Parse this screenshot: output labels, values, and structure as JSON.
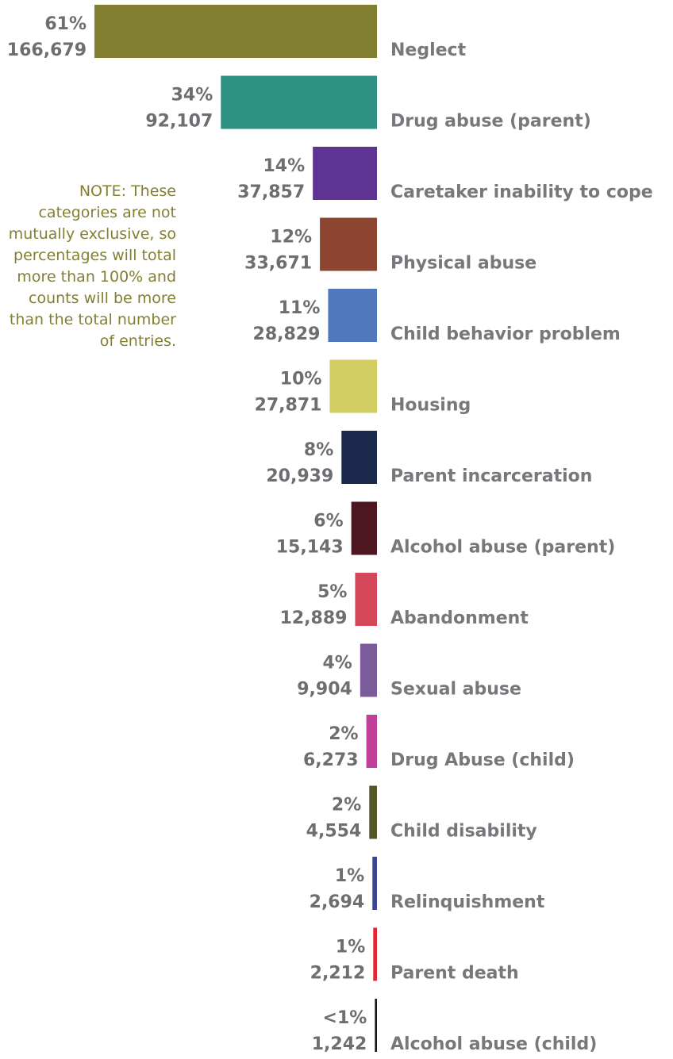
{
  "chart_data": {
    "type": "hbar",
    "categories": [
      "Neglect",
      "Drug abuse (parent)",
      "Caretaker inability to cope",
      "Physical abuse",
      "Child behavior problem",
      "Housing",
      "Parent incarceration",
      "Alcohol abuse (parent)",
      "Abandonment",
      "Sexual abuse",
      "Drug Abuse (child)",
      "Child disability",
      "Relinquishment",
      "Parent death",
      "Alcohol abuse (child)"
    ],
    "values": [
      166679,
      92107,
      37857,
      33671,
      28829,
      27871,
      20939,
      15143,
      12889,
      9904,
      6273,
      4554,
      2694,
      2212,
      1242
    ],
    "value_labels": [
      "166,679",
      "92,107",
      "37,857",
      "33,671",
      "28,829",
      "27,871",
      "20,939",
      "15,143",
      "12,889",
      "9,904",
      "6,273",
      "4,554",
      "2,694",
      "2,212",
      "1,242"
    ],
    "percent_labels": [
      "61%",
      "34%",
      "14%",
      "12%",
      "11%",
      "10%",
      "8%",
      "6%",
      "5%",
      "4%",
      "2%",
      "2%",
      "1%",
      "1%",
      "<1%"
    ],
    "colors": [
      "#837f31",
      "#2e9182",
      "#5f3393",
      "#8e4530",
      "#4f78bd",
      "#d1cd61",
      "#1b2a4c",
      "#4d1621",
      "#d4485a",
      "#7c5b9b",
      "#c1409a",
      "#565727",
      "#3d4595",
      "#e12732",
      "#1a1a1a"
    ],
    "note": "NOTE: These categories are not mutually exclusive, so percentages will total more than 100% and counts will be more than the total number of entries."
  }
}
